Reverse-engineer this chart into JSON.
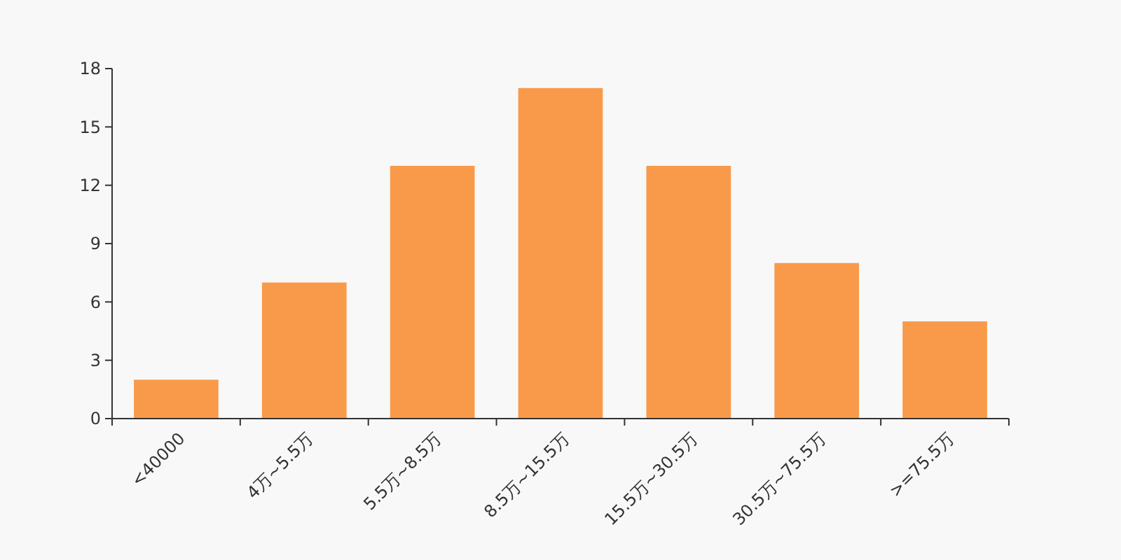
{
  "chart_data": {
    "type": "bar",
    "categories": [
      "<40000",
      "4万~5.5万",
      "5.5万~8.5万",
      "8.5万~15.5万",
      "15.5万~30.5万",
      "30.5万~75.5万",
      ">=75.5万"
    ],
    "values": [
      2,
      7,
      13,
      17,
      13,
      8,
      5
    ],
    "color": "#f89a4a",
    "ylim": [
      0,
      18
    ],
    "yticks": [
      0,
      3,
      6,
      9,
      12,
      15,
      18
    ],
    "grid": false
  }
}
